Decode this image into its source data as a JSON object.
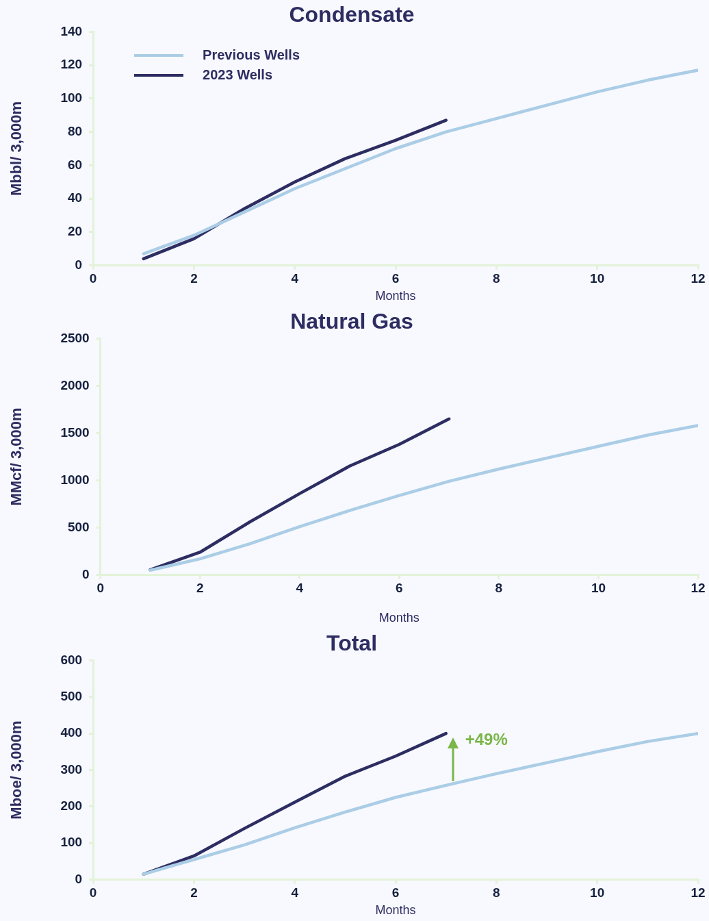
{
  "chart_data": [
    {
      "type": "line",
      "title": "Condensate",
      "xlabel": "Months",
      "ylabel": "Mbbl/ 3,000m",
      "xlim": [
        0,
        12
      ],
      "xticks": [
        0,
        2,
        4,
        6,
        8,
        10,
        12
      ],
      "ylim": [
        0,
        140
      ],
      "yticks": [
        0,
        20,
        40,
        60,
        80,
        100,
        120,
        140
      ],
      "legend": "top left",
      "grid": false,
      "marker": "none",
      "series": [
        {
          "name": "Previous Wells",
          "color": "#abcde6",
          "x": [
            1,
            2,
            3,
            4,
            5,
            6,
            7,
            8,
            9,
            10,
            11,
            12
          ],
          "values": [
            7,
            18,
            32,
            46,
            58,
            70,
            80,
            88,
            96,
            104,
            111,
            117
          ]
        },
        {
          "name": "2023 Wells",
          "color": "#2e2d62",
          "x": [
            1,
            2,
            3,
            4,
            5,
            6,
            7
          ],
          "values": [
            4,
            16,
            34,
            50,
            64,
            75,
            87
          ]
        }
      ]
    },
    {
      "type": "line",
      "title": "Natural Gas",
      "xlabel": "Months",
      "ylabel": "MMcf/ 3,000m",
      "xlim": [
        0,
        12
      ],
      "xticks": [
        0,
        2,
        4,
        6,
        8,
        10,
        12
      ],
      "ylim": [
        0,
        2500
      ],
      "yticks": [
        0,
        500,
        1000,
        1500,
        2000,
        2500
      ],
      "legend": false,
      "grid": false,
      "marker": "none",
      "series": [
        {
          "color": "#abcde6",
          "x": [
            1,
            2,
            3,
            4,
            5,
            6,
            7,
            8,
            9,
            10,
            11,
            12
          ],
          "values": [
            50,
            170,
            330,
            510,
            680,
            840,
            990,
            1120,
            1240,
            1360,
            1480,
            1580
          ]
        },
        {
          "color": "#2e2d62",
          "x": [
            1,
            2,
            3,
            4,
            5,
            6,
            7
          ],
          "values": [
            55,
            240,
            560,
            860,
            1150,
            1380,
            1650
          ]
        }
      ]
    },
    {
      "type": "line",
      "title": "Total",
      "xlabel": "Months",
      "ylabel": "Mboe/ 3,000m",
      "xlim": [
        0,
        12
      ],
      "xticks": [
        0,
        2,
        4,
        6,
        8,
        10,
        12
      ],
      "ylim": [
        0,
        600
      ],
      "yticks": [
        0,
        100,
        200,
        300,
        400,
        500,
        600
      ],
      "legend": false,
      "grid": false,
      "marker": "none",
      "annotations": [
        {
          "text": "+49%",
          "x": 7,
          "y": 400
        }
      ],
      "series": [
        {
          "color": "#abcde6",
          "x": [
            1,
            2,
            3,
            4,
            5,
            6,
            7,
            8,
            9,
            10,
            11,
            12
          ],
          "values": [
            15,
            55,
            95,
            142,
            185,
            225,
            258,
            290,
            320,
            350,
            378,
            400
          ]
        },
        {
          "color": "#2e2d62",
          "x": [
            1,
            2,
            3,
            4,
            5,
            6,
            7
          ],
          "values": [
            15,
            65,
            140,
            212,
            283,
            338,
            400
          ]
        }
      ]
    }
  ]
}
